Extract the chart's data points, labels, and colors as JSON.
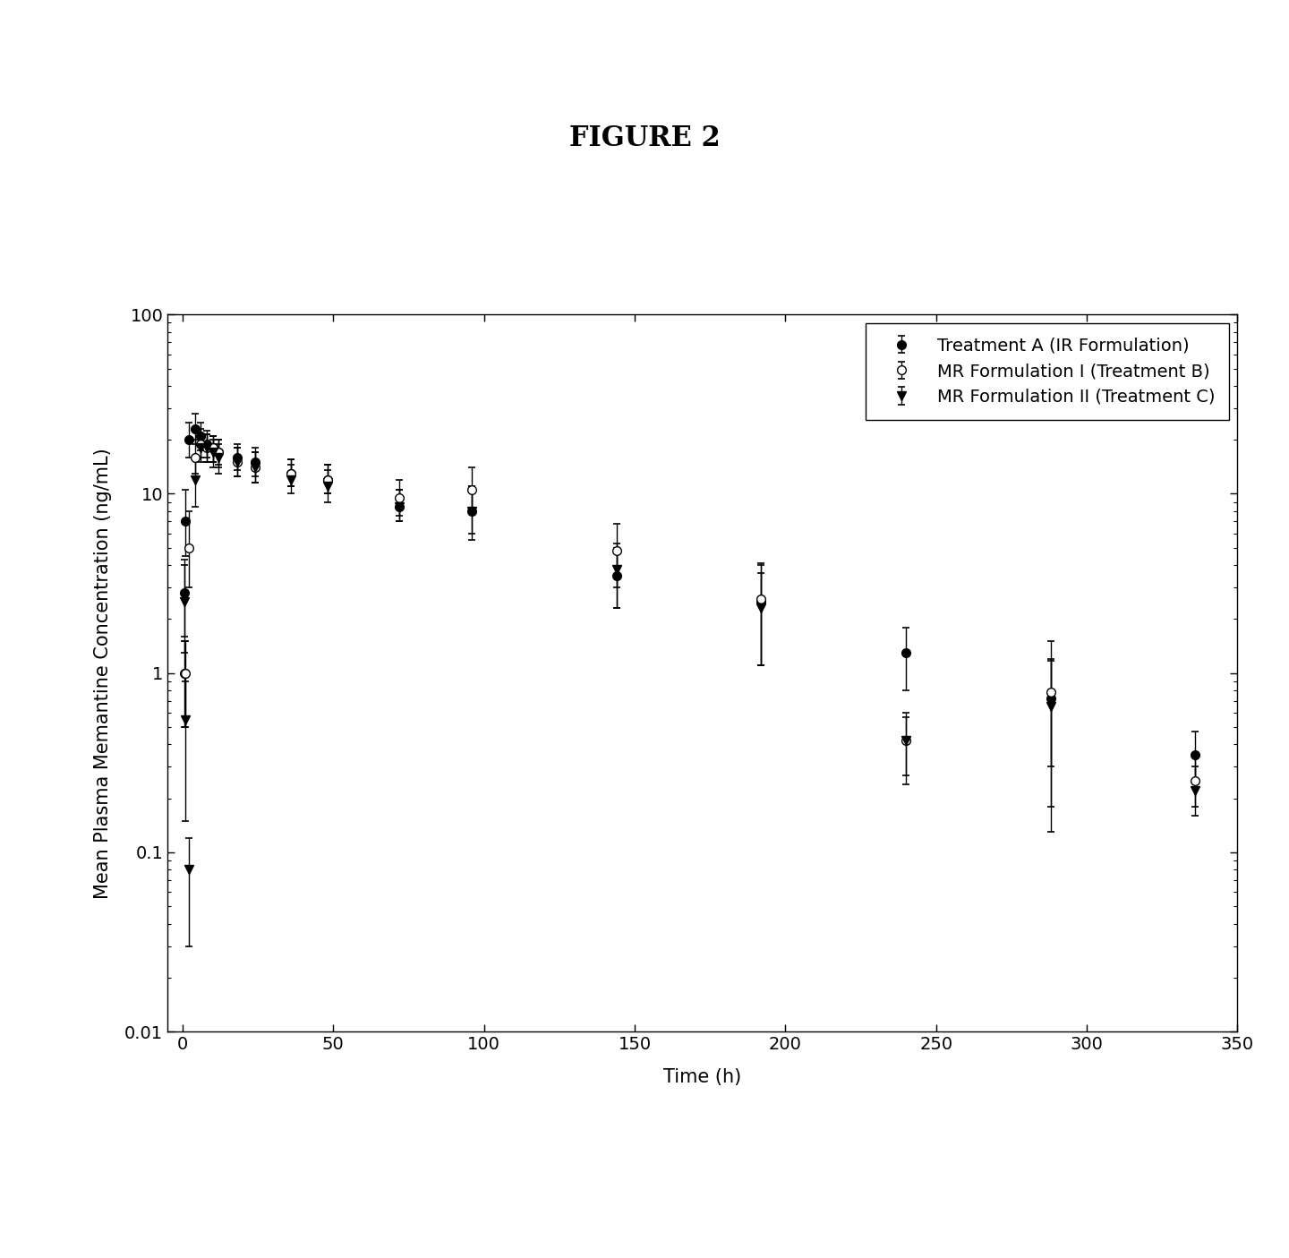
{
  "title": "FIGURE 2",
  "xlabel": "Time (h)",
  "ylabel": "Mean Plasma Memantine Concentration (ng/mL)",
  "ylim_log": [
    0.01,
    100
  ],
  "xlim": [
    -5,
    350
  ],
  "xticks": [
    0,
    50,
    100,
    150,
    200,
    250,
    300,
    350
  ],
  "series_A": {
    "label": "Treatment A (IR Formulation)",
    "marker": "o",
    "fillstyle": "full",
    "color": "black",
    "x": [
      0.5,
      1,
      2,
      4,
      6,
      8,
      10,
      12,
      18,
      24,
      36,
      48,
      72,
      96,
      144,
      192,
      240,
      288,
      336
    ],
    "y": [
      2.8,
      7.0,
      20,
      23,
      21,
      19,
      18,
      17,
      16,
      15,
      13,
      12,
      8.5,
      8.0,
      3.5,
      2.5,
      1.3,
      0.72,
      0.35
    ],
    "yerr_lo": [
      1.2,
      2.5,
      4.0,
      4.0,
      3.5,
      3.0,
      3.0,
      2.5,
      2.5,
      2.5,
      2.0,
      2.0,
      1.5,
      2.0,
      1.2,
      1.4,
      0.5,
      0.42,
      0.1
    ],
    "yerr_hi": [
      1.5,
      3.5,
      5.0,
      5.0,
      4.0,
      3.5,
      3.0,
      3.0,
      3.0,
      3.0,
      2.5,
      2.5,
      2.0,
      3.0,
      1.5,
      1.5,
      0.5,
      0.48,
      0.12
    ]
  },
  "series_B": {
    "label": "MR Formulation I (Treatment B)",
    "marker": "o",
    "fillstyle": "none",
    "color": "black",
    "x": [
      0.5,
      1,
      2,
      4,
      6,
      8,
      10,
      12,
      18,
      24,
      36,
      48,
      72,
      96,
      144,
      192,
      240,
      288,
      336
    ],
    "y": [
      1.0,
      1.0,
      5.0,
      16,
      19,
      18,
      18,
      17,
      15,
      14,
      13,
      12,
      9.5,
      10.5,
      4.8,
      2.6,
      0.42,
      0.78,
      0.25
    ],
    "yerr_lo": [
      0.5,
      0.5,
      2.0,
      3.0,
      3.0,
      3.0,
      3.0,
      3.0,
      2.5,
      2.5,
      2.0,
      2.0,
      2.0,
      2.5,
      1.8,
      1.5,
      0.18,
      0.6,
      0.07
    ],
    "yerr_hi": [
      0.5,
      0.5,
      3.0,
      4.0,
      4.0,
      3.5,
      3.0,
      3.0,
      3.0,
      3.0,
      2.5,
      2.5,
      2.5,
      3.5,
      2.0,
      1.5,
      0.18,
      0.72,
      0.09
    ]
  },
  "series_C": {
    "label": "MR Formulation II (Treatment C)",
    "marker": "v",
    "fillstyle": "full",
    "color": "black",
    "x": [
      0.5,
      1,
      2,
      4,
      6,
      8,
      10,
      12,
      18,
      24,
      36,
      48,
      72,
      96,
      144,
      192,
      240,
      288,
      336
    ],
    "y": [
      2.5,
      0.55,
      0.08,
      12,
      18,
      18,
      17,
      16,
      15,
      14,
      12,
      11,
      8.5,
      8.0,
      3.8,
      2.3,
      0.42,
      0.65,
      0.22
    ],
    "yerr_lo": [
      1.2,
      0.4,
      0.05,
      3.5,
      3.0,
      3.0,
      3.0,
      3.0,
      2.5,
      2.5,
      2.0,
      2.0,
      1.5,
      2.5,
      1.5,
      1.2,
      0.15,
      0.52,
      0.06
    ],
    "yerr_hi": [
      1.5,
      0.35,
      0.04,
      4.0,
      3.5,
      3.5,
      3.0,
      3.0,
      3.0,
      3.0,
      2.5,
      2.5,
      2.0,
      3.0,
      1.5,
      1.3,
      0.15,
      0.52,
      0.08
    ]
  },
  "background_color": "white",
  "line_width": 1.5,
  "capsize": 3,
  "title_fontsize": 22,
  "label_fontsize": 15,
  "tick_fontsize": 14,
  "legend_fontsize": 14
}
